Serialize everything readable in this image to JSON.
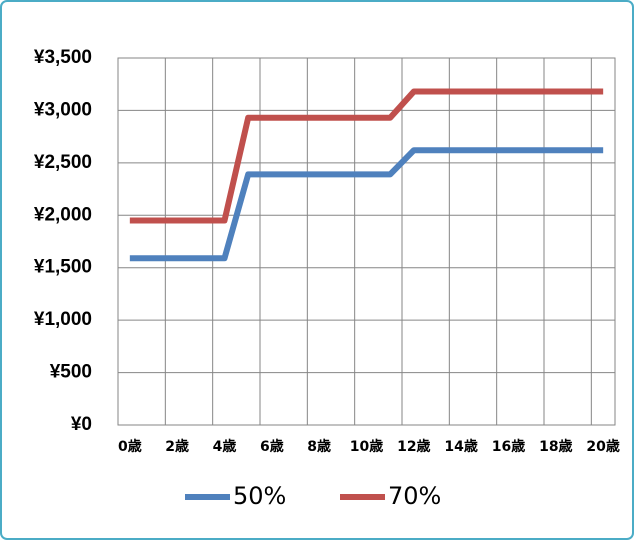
{
  "chart_data": {
    "type": "line",
    "categories": [
      "0歳",
      null,
      "2歳",
      null,
      "4歳",
      null,
      "6歳",
      null,
      "8歳",
      null,
      "10歳",
      null,
      "12歳",
      null,
      "14歳",
      null,
      "16歳",
      null,
      "18歳",
      null,
      "20歳"
    ],
    "series": [
      {
        "name": "50%",
        "color": "#4f81bd",
        "values": [
          1590,
          1590,
          1590,
          1590,
          1590,
          2390,
          2390,
          2390,
          2390,
          2390,
          2390,
          2390,
          2620,
          2620,
          2620,
          2620,
          2620,
          2620,
          2620,
          2620,
          2620
        ]
      },
      {
        "name": "70%",
        "color": "#c0504d",
        "values": [
          1950,
          1950,
          1950,
          1950,
          1950,
          2930,
          2930,
          2930,
          2930,
          2930,
          2930,
          2930,
          3180,
          3180,
          3180,
          3180,
          3180,
          3180,
          3180,
          3180,
          3180
        ]
      }
    ],
    "ylim": [
      0,
      3500
    ],
    "yticks": [
      {
        "value": 0,
        "label": "¥0"
      },
      {
        "value": 500,
        "label": "¥500"
      },
      {
        "value": 1000,
        "label": "¥1,000"
      },
      {
        "value": 1500,
        "label": "¥1,500"
      },
      {
        "value": 2000,
        "label": "¥2,000"
      },
      {
        "value": 2500,
        "label": "¥2,500"
      },
      {
        "value": 3000,
        "label": "¥3,000"
      },
      {
        "value": 3500,
        "label": "¥3,500"
      }
    ],
    "grid": true,
    "legend": "bottom"
  }
}
